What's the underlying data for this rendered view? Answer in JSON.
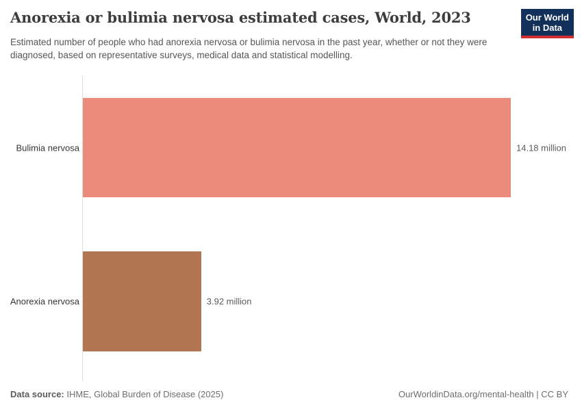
{
  "header": {
    "title": "Anorexia or bulimia nervosa estimated cases, World, 2023",
    "subtitle": "Estimated number of people who had anorexia nervosa or bulimia nervosa in the past year, whether or not they were diagnosed, based on representative surveys, medical data and statistical modelling.",
    "logo": {
      "line1": "Our World",
      "line2": "in Data",
      "bg_color": "#12305A",
      "accent_color": "#D22D32"
    }
  },
  "chart_data": {
    "type": "bar",
    "orientation": "horizontal",
    "title": "Anorexia or bulimia nervosa estimated cases, World, 2023",
    "categories": [
      "Bulimia nervosa",
      "Anorexia nervosa"
    ],
    "values": [
      14.18,
      3.92
    ],
    "unit": "million",
    "value_labels": [
      "14.18 million",
      "3.92 million"
    ],
    "bar_colors": [
      "#EA8B7C",
      "#B17651"
    ],
    "xlim": [
      0,
      14.18
    ],
    "grid": false,
    "legend": "none",
    "axis_line_color": "#DEDEDE"
  },
  "footer": {
    "source_label": "Data source:",
    "source_text": " IHME, Global Burden of Disease (2025)",
    "credit": "OurWorldinData.org/mental-health | CC BY"
  }
}
